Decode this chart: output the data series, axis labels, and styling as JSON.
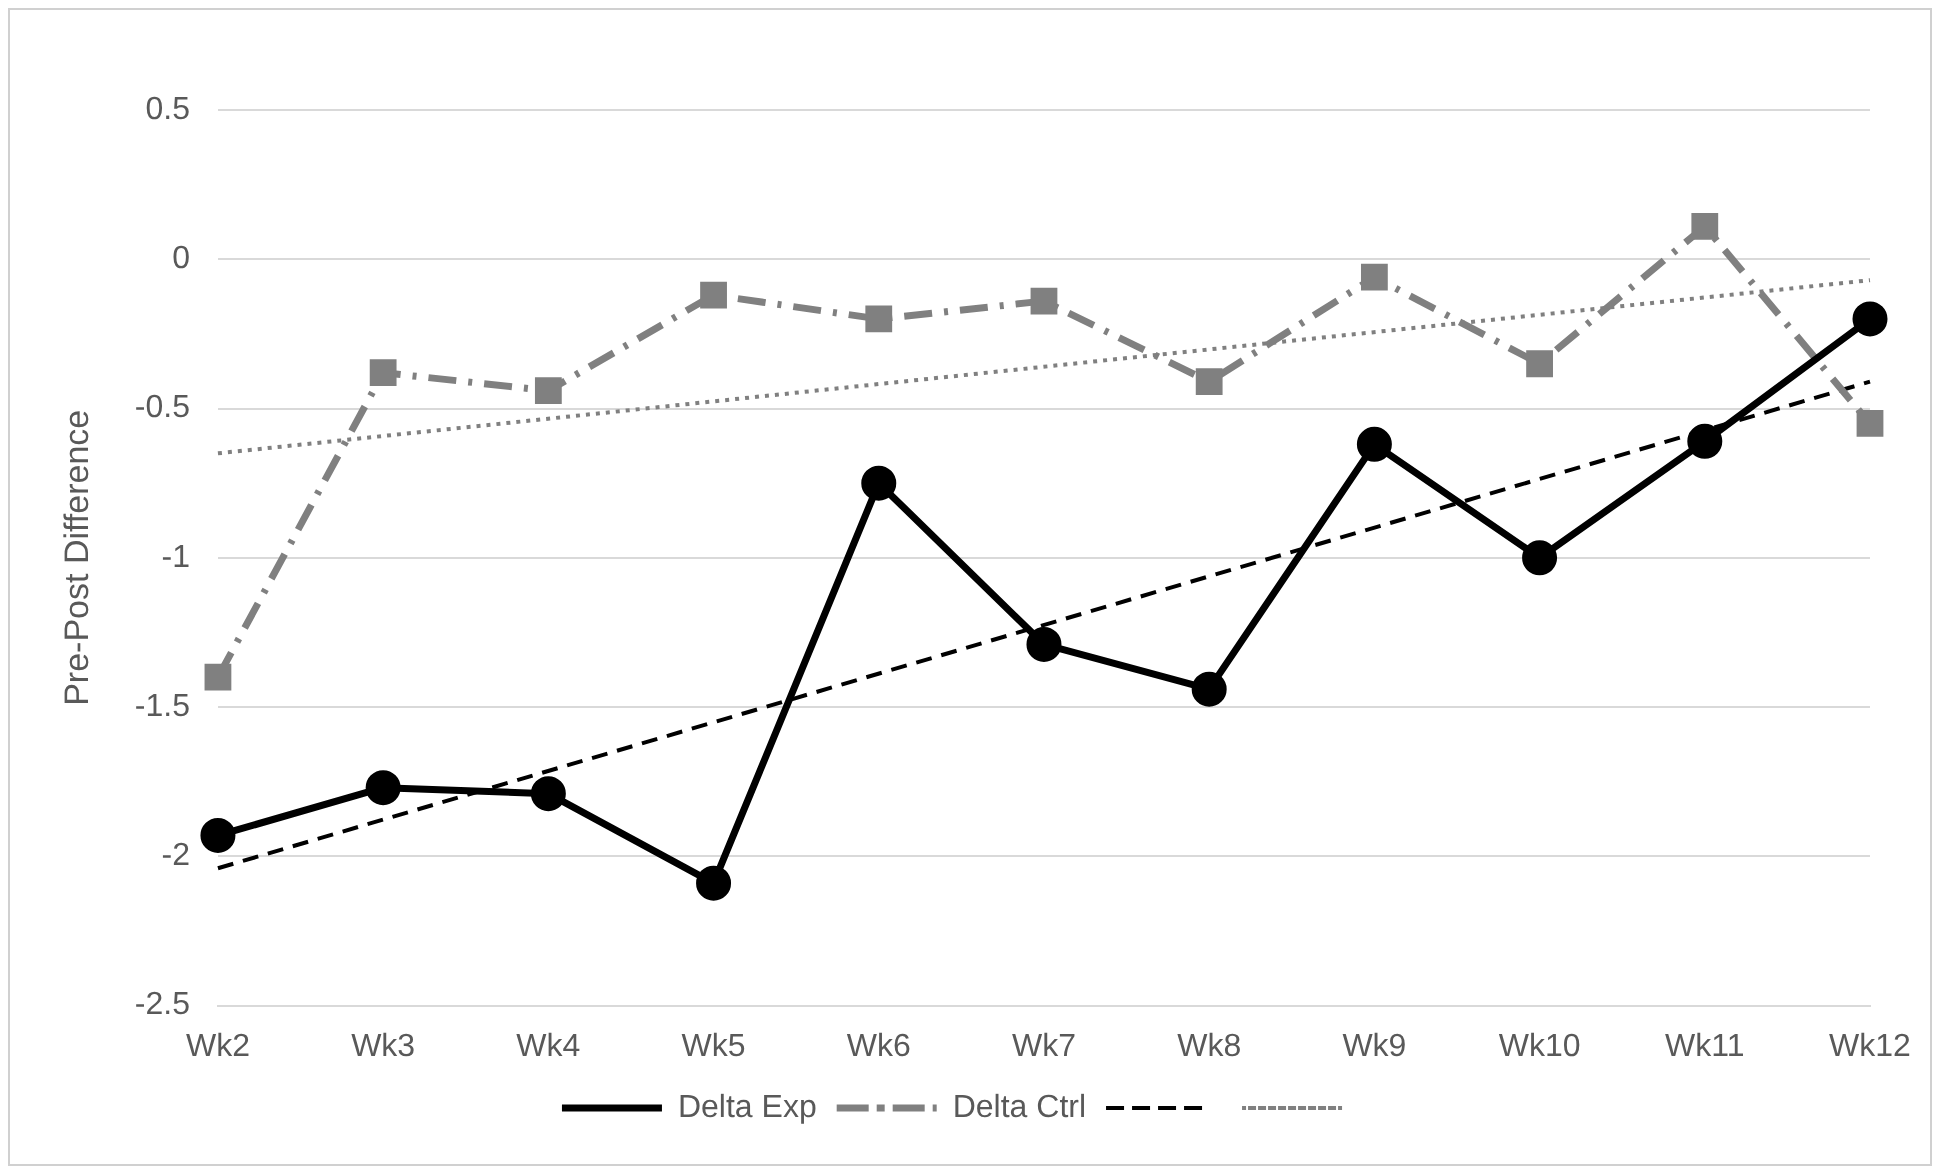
{
  "chart_data": {
    "type": "line",
    "ylabel": "Pre-Post Difference",
    "categories": [
      "Wk2",
      "Wk3",
      "Wk4",
      "Wk5",
      "Wk6",
      "Wk7",
      "Wk8",
      "Wk9",
      "Wk10",
      "Wk11",
      "Wk12"
    ],
    "series": [
      {
        "name": "Delta Exp",
        "color": "#000000",
        "marker": "circle",
        "line_style": "solid",
        "values": [
          -1.93,
          -1.77,
          -1.79,
          -2.09,
          -0.75,
          -1.29,
          -1.44,
          -0.62,
          -1.0,
          -0.61,
          -0.2
        ]
      },
      {
        "name": "Delta Ctrl",
        "color": "#808080",
        "marker": "square",
        "line_style": "dashed",
        "values": [
          -1.4,
          -0.38,
          -0.44,
          -0.12,
          -0.2,
          -0.14,
          -0.41,
          -0.06,
          -0.35,
          0.11,
          -0.55
        ]
      },
      {
        "color": "#000000",
        "marker": "none",
        "line_style": "dashed",
        "x": [
          "Wk2",
          "Wk12"
        ],
        "values": [
          -2.04,
          -0.41
        ]
      },
      {
        "color": "#808080",
        "marker": "none",
        "line_style": "dotted",
        "x": [
          "Wk2",
          "Wk12"
        ],
        "values": [
          -0.65,
          -0.07
        ]
      }
    ],
    "ylim": [
      -2.5,
      0.5
    ],
    "yticks": [
      -2.5,
      -2,
      -1.5,
      -1,
      -0.5,
      0,
      0.5
    ],
    "grid": "y",
    "legend": "bottom"
  }
}
